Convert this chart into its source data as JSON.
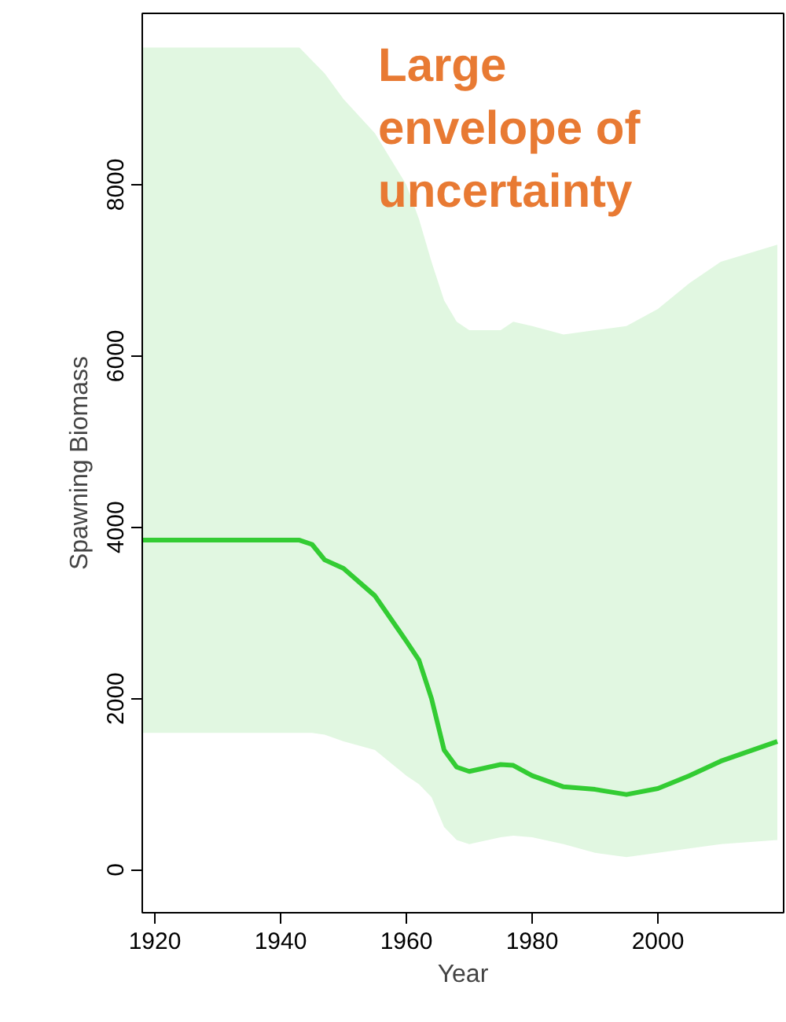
{
  "chart_data": {
    "type": "line",
    "xlabel": "Year",
    "ylabel": "Spawning Biomass",
    "xlim": [
      1918,
      2020
    ],
    "ylim": [
      -500,
      10000
    ],
    "xticks": [
      1920,
      1940,
      1960,
      1980,
      2000
    ],
    "yticks": [
      0,
      2000,
      4000,
      6000,
      8000
    ],
    "grid": false,
    "marker": "none",
    "line_style": "solid",
    "annotations": [
      "Large\nenvelope of\nuncertainty"
    ],
    "series": [
      {
        "color": "#33cc33",
        "x": [
          1918,
          1943,
          1945,
          1947,
          1950,
          1955,
          1960,
          1962,
          1964,
          1966,
          1968,
          1970,
          1975,
          1977,
          1980,
          1985,
          1990,
          1995,
          2000,
          2005,
          2010,
          2019
        ],
        "values": [
          3850,
          3850,
          3800,
          3620,
          3520,
          3200,
          2670,
          2450,
          2000,
          1400,
          1200,
          1150,
          1230,
          1220,
          1100,
          970,
          940,
          880,
          950,
          1100,
          1270,
          1500
        ],
        "lower": [
          1600,
          1600,
          1600,
          1580,
          1500,
          1400,
          1100,
          1000,
          850,
          500,
          350,
          300,
          380,
          400,
          380,
          300,
          200,
          150,
          200,
          250,
          300,
          350
        ],
        "upper": [
          9600,
          9600,
          9450,
          9300,
          9000,
          8600,
          8000,
          7600,
          7100,
          6650,
          6400,
          6300,
          6300,
          6400,
          6350,
          6250,
          6300,
          6350,
          6550,
          6850,
          7100,
          7300
        ]
      }
    ]
  }
}
